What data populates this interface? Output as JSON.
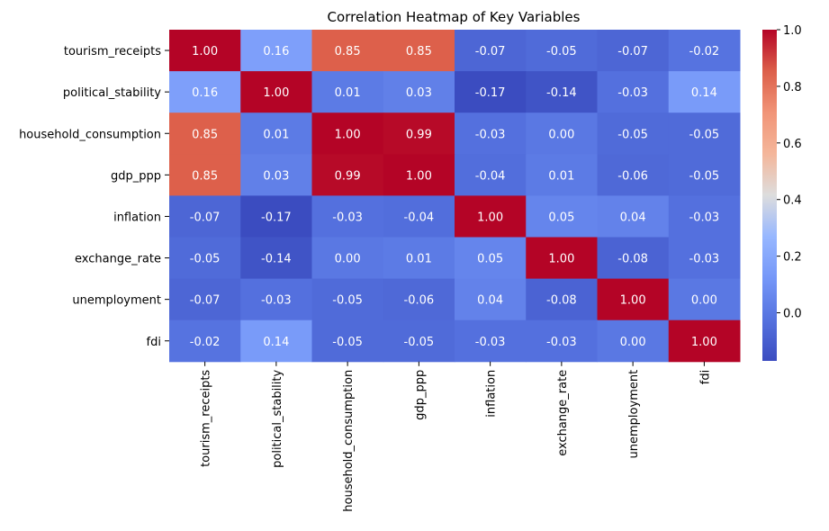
{
  "chart_data": {
    "type": "heatmap",
    "title": "Correlation Heatmap of Key Variables",
    "xlabel": "",
    "ylabel": "",
    "rows": [
      "tourism_receipts",
      "political_stability",
      "household_consumption",
      "gdp_ppp",
      "inflation",
      "exchange_rate",
      "unemployment",
      "fdi"
    ],
    "columns": [
      "tourism_receipts",
      "political_stability",
      "household_consumption",
      "gdp_ppp",
      "inflation",
      "exchange_rate",
      "unemployment",
      "fdi"
    ],
    "values": [
      [
        1.0,
        0.16,
        0.85,
        0.85,
        -0.07,
        -0.05,
        -0.07,
        -0.02
      ],
      [
        0.16,
        1.0,
        0.01,
        0.03,
        -0.17,
        -0.14,
        -0.03,
        0.14
      ],
      [
        0.85,
        0.01,
        1.0,
        0.99,
        -0.03,
        0.0,
        -0.05,
        -0.05
      ],
      [
        0.85,
        0.03,
        0.99,
        1.0,
        -0.04,
        0.01,
        -0.06,
        -0.05
      ],
      [
        -0.07,
        -0.17,
        -0.03,
        -0.04,
        1.0,
        0.05,
        0.04,
        -0.03
      ],
      [
        -0.05,
        -0.14,
        0.0,
        0.01,
        0.05,
        1.0,
        -0.08,
        -0.03
      ],
      [
        -0.07,
        -0.03,
        -0.05,
        -0.06,
        0.04,
        -0.08,
        1.0,
        0.0
      ],
      [
        -0.02,
        0.14,
        -0.05,
        -0.05,
        -0.03,
        -0.03,
        0.0,
        1.0
      ]
    ],
    "annotation_format": "0.00",
    "colormap": "coolwarm",
    "color_min": -0.17,
    "color_max": 1.0,
    "colorbar_ticks": [
      -0.0,
      0.2,
      0.4,
      0.6,
      0.8,
      1.0
    ],
    "colorbar_tick_labels": [
      "0.0",
      "0.2",
      "0.4",
      "0.6",
      "0.8",
      "1.0"
    ],
    "grid": false
  }
}
